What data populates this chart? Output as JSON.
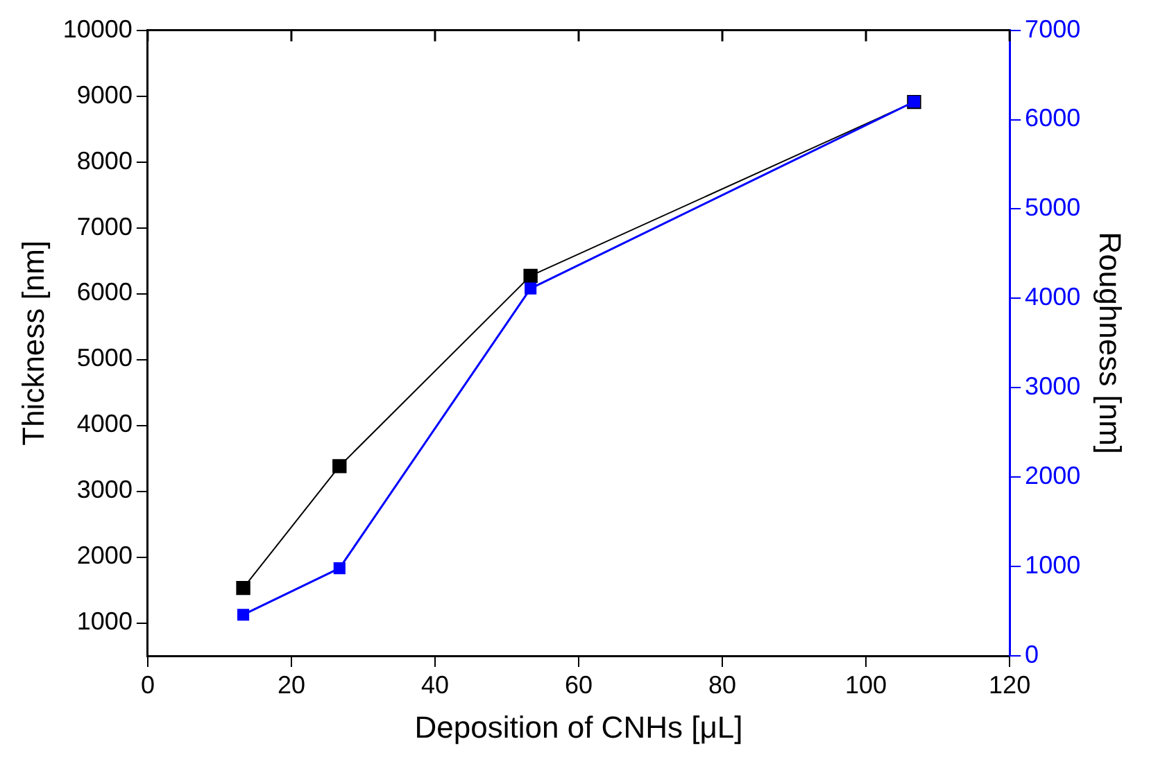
{
  "chart_data": {
    "type": "line",
    "xlabel": "Deposition of CNHs [μL]",
    "ylabel": "Thickness [nm]",
    "y2label": "Roughness [nm]",
    "x": [
      13.3,
      26.7,
      53.3,
      106.7
    ],
    "series": [
      {
        "color": "#000000",
        "values": [
          1530,
          3380,
          6270,
          8910
        ]
      },
      {
        "color": "#0000ff",
        "values": [
          460,
          980,
          4110,
          6200
        ],
        "axis": "y2"
      }
    ],
    "xlim": [
      0,
      120
    ],
    "xticks": [
      0,
      20,
      40,
      60,
      80,
      100,
      120
    ],
    "ylim": [
      500,
      10000
    ],
    "yticks": [
      1000,
      2000,
      3000,
      4000,
      5000,
      6000,
      7000,
      8000,
      9000,
      10000
    ],
    "y2lim": [
      0,
      7000
    ],
    "y2ticks": [
      0,
      1000,
      2000,
      3000,
      4000,
      5000,
      6000,
      7000
    ],
    "grid": false,
    "legend": false,
    "marker": "square",
    "line_style": "solid"
  }
}
